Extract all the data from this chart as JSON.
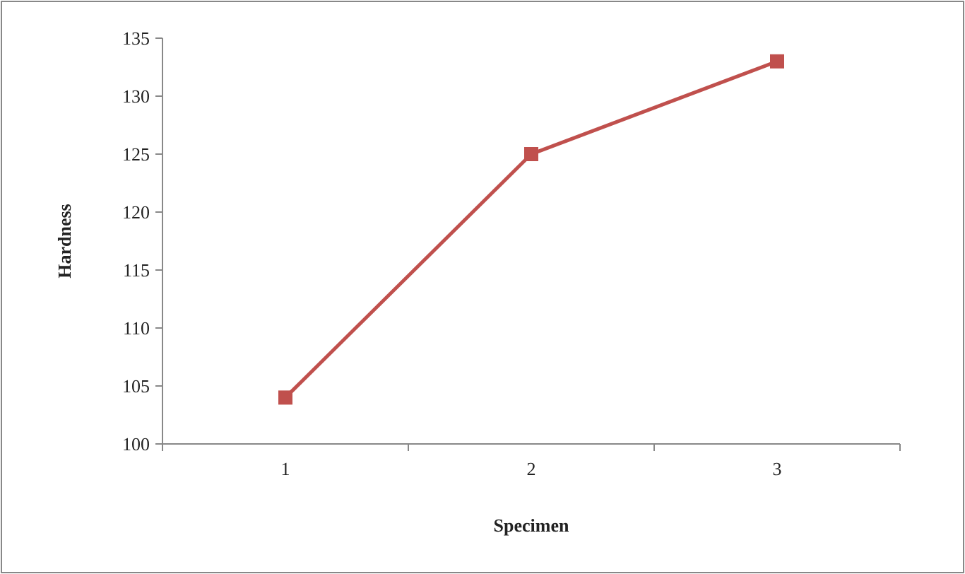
{
  "chart_data": {
    "type": "line",
    "xlabel": "Specimen",
    "ylabel": "Hardness",
    "categories": [
      "1",
      "2",
      "3"
    ],
    "series": [
      {
        "color": "#c0504d",
        "values": [
          104,
          125,
          133
        ]
      }
    ],
    "ylim": [
      100,
      135
    ],
    "yticks": [
      100,
      105,
      110,
      115,
      120,
      125,
      130,
      135
    ],
    "marker": "square",
    "line_style": "solid"
  }
}
